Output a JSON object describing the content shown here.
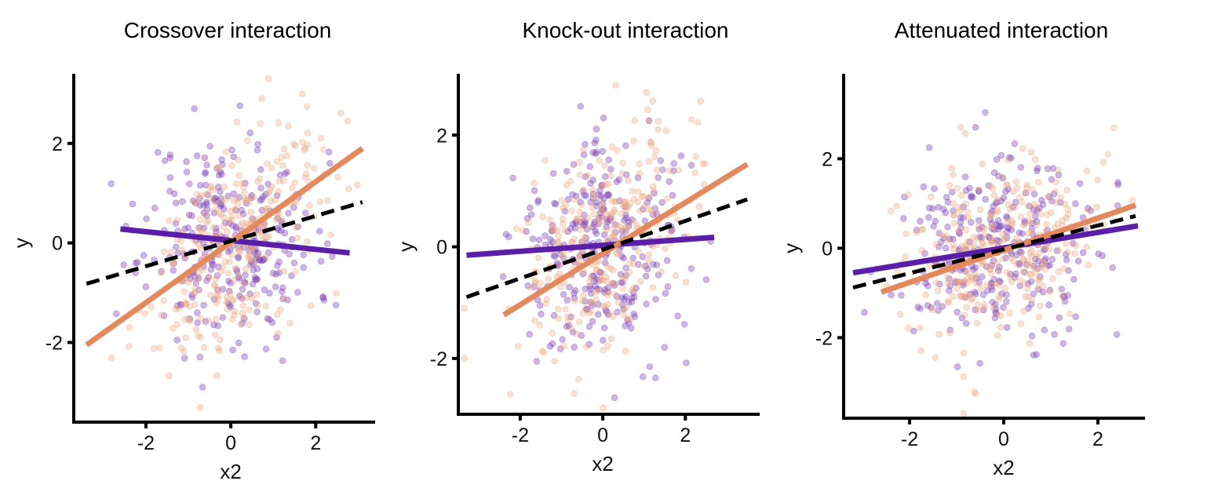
{
  "chart_data": [
    {
      "type": "scatter",
      "title": "Crossover interaction",
      "xlabel": "x2",
      "ylabel": "y",
      "xlim": [
        -3.7,
        3.4
      ],
      "ylim": [
        -3.6,
        3.4
      ],
      "xticks": [
        -2,
        0,
        2
      ],
      "xtick_labels": [
        "-2",
        "0",
        "2"
      ],
      "yticks": [
        -2,
        0,
        2
      ],
      "ytick_labels": [
        "-2",
        "0",
        "2"
      ],
      "grid": false,
      "legend": "none",
      "groups": [
        {
          "color": "#7b3fb5",
          "slope": -0.09,
          "intercept": 0.05,
          "x_sd": 1.0,
          "noise": 1.0,
          "n": 300,
          "seed": 11
        },
        {
          "color": "#eaa77f",
          "slope": 0.6,
          "intercept": -0.02,
          "x_sd": 1.05,
          "noise": 0.95,
          "n": 300,
          "seed": 29
        }
      ],
      "lines": [
        {
          "style": "solid",
          "color": "#5a1ea8",
          "x": [
            -2.6,
            2.8
          ],
          "y": [
            0.28,
            -0.2
          ]
        },
        {
          "style": "solid",
          "color": "#e4895e",
          "x": [
            -3.4,
            3.1
          ],
          "y": [
            -2.05,
            1.9
          ]
        },
        {
          "style": "dashed",
          "color": "#000000",
          "x": [
            -3.4,
            3.1
          ],
          "y": [
            -0.82,
            0.82
          ]
        }
      ]
    },
    {
      "type": "scatter",
      "title": "Knock-out interaction",
      "xlabel": "x2",
      "ylabel": "y",
      "xlim": [
        -3.5,
        3.8
      ],
      "ylim": [
        -3.0,
        3.1
      ],
      "xticks": [
        -2,
        0,
        2
      ],
      "xtick_labels": [
        "-2",
        "0",
        "2"
      ],
      "yticks": [
        -2,
        0,
        2
      ],
      "ytick_labels": [
        "-2",
        "0",
        "2"
      ],
      "grid": false,
      "legend": "none",
      "groups": [
        {
          "color": "#7b3fb5",
          "slope": 0.06,
          "intercept": 0.0,
          "x_sd": 1.0,
          "noise": 0.95,
          "n": 300,
          "seed": 41
        },
        {
          "color": "#eaa77f",
          "slope": 0.45,
          "intercept": 0.0,
          "x_sd": 1.05,
          "noise": 0.95,
          "n": 300,
          "seed": 57
        }
      ],
      "lines": [
        {
          "style": "solid",
          "color": "#5a1ea8",
          "x": [
            -3.3,
            2.7
          ],
          "y": [
            -0.15,
            0.17
          ]
        },
        {
          "style": "solid",
          "color": "#e4895e",
          "x": [
            -2.4,
            3.5
          ],
          "y": [
            -1.22,
            1.48
          ]
        },
        {
          "style": "dashed",
          "color": "#000000",
          "x": [
            -3.3,
            3.5
          ],
          "y": [
            -0.9,
            0.85
          ]
        }
      ]
    },
    {
      "type": "scatter",
      "title": "Attenuated interaction",
      "xlabel": "x2",
      "ylabel": "y",
      "xlim": [
        -3.4,
        3.0
      ],
      "ylim": [
        -3.8,
        3.9
      ],
      "xticks": [
        -2,
        0,
        2
      ],
      "xtick_labels": [
        "-2",
        "0",
        "2"
      ],
      "yticks": [
        -2,
        0,
        2
      ],
      "ytick_labels": [
        "-2",
        "0",
        "2"
      ],
      "grid": false,
      "legend": "none",
      "groups": [
        {
          "color": "#7b3fb5",
          "slope": 0.2,
          "intercept": 0.05,
          "x_sd": 1.0,
          "noise": 1.0,
          "n": 300,
          "seed": 73
        },
        {
          "color": "#eaa77f",
          "slope": 0.35,
          "intercept": 0.0,
          "x_sd": 1.0,
          "noise": 1.0,
          "n": 300,
          "seed": 89
        }
      ],
      "lines": [
        {
          "style": "solid",
          "color": "#5a1ea8",
          "x": [
            -3.2,
            2.85
          ],
          "y": [
            -0.55,
            0.5
          ]
        },
        {
          "style": "solid",
          "color": "#e4895e",
          "x": [
            -2.6,
            2.8
          ],
          "y": [
            -0.98,
            0.96
          ]
        },
        {
          "style": "dashed",
          "color": "#000000",
          "x": [
            -3.2,
            2.8
          ],
          "y": [
            -0.88,
            0.72
          ]
        }
      ]
    }
  ]
}
